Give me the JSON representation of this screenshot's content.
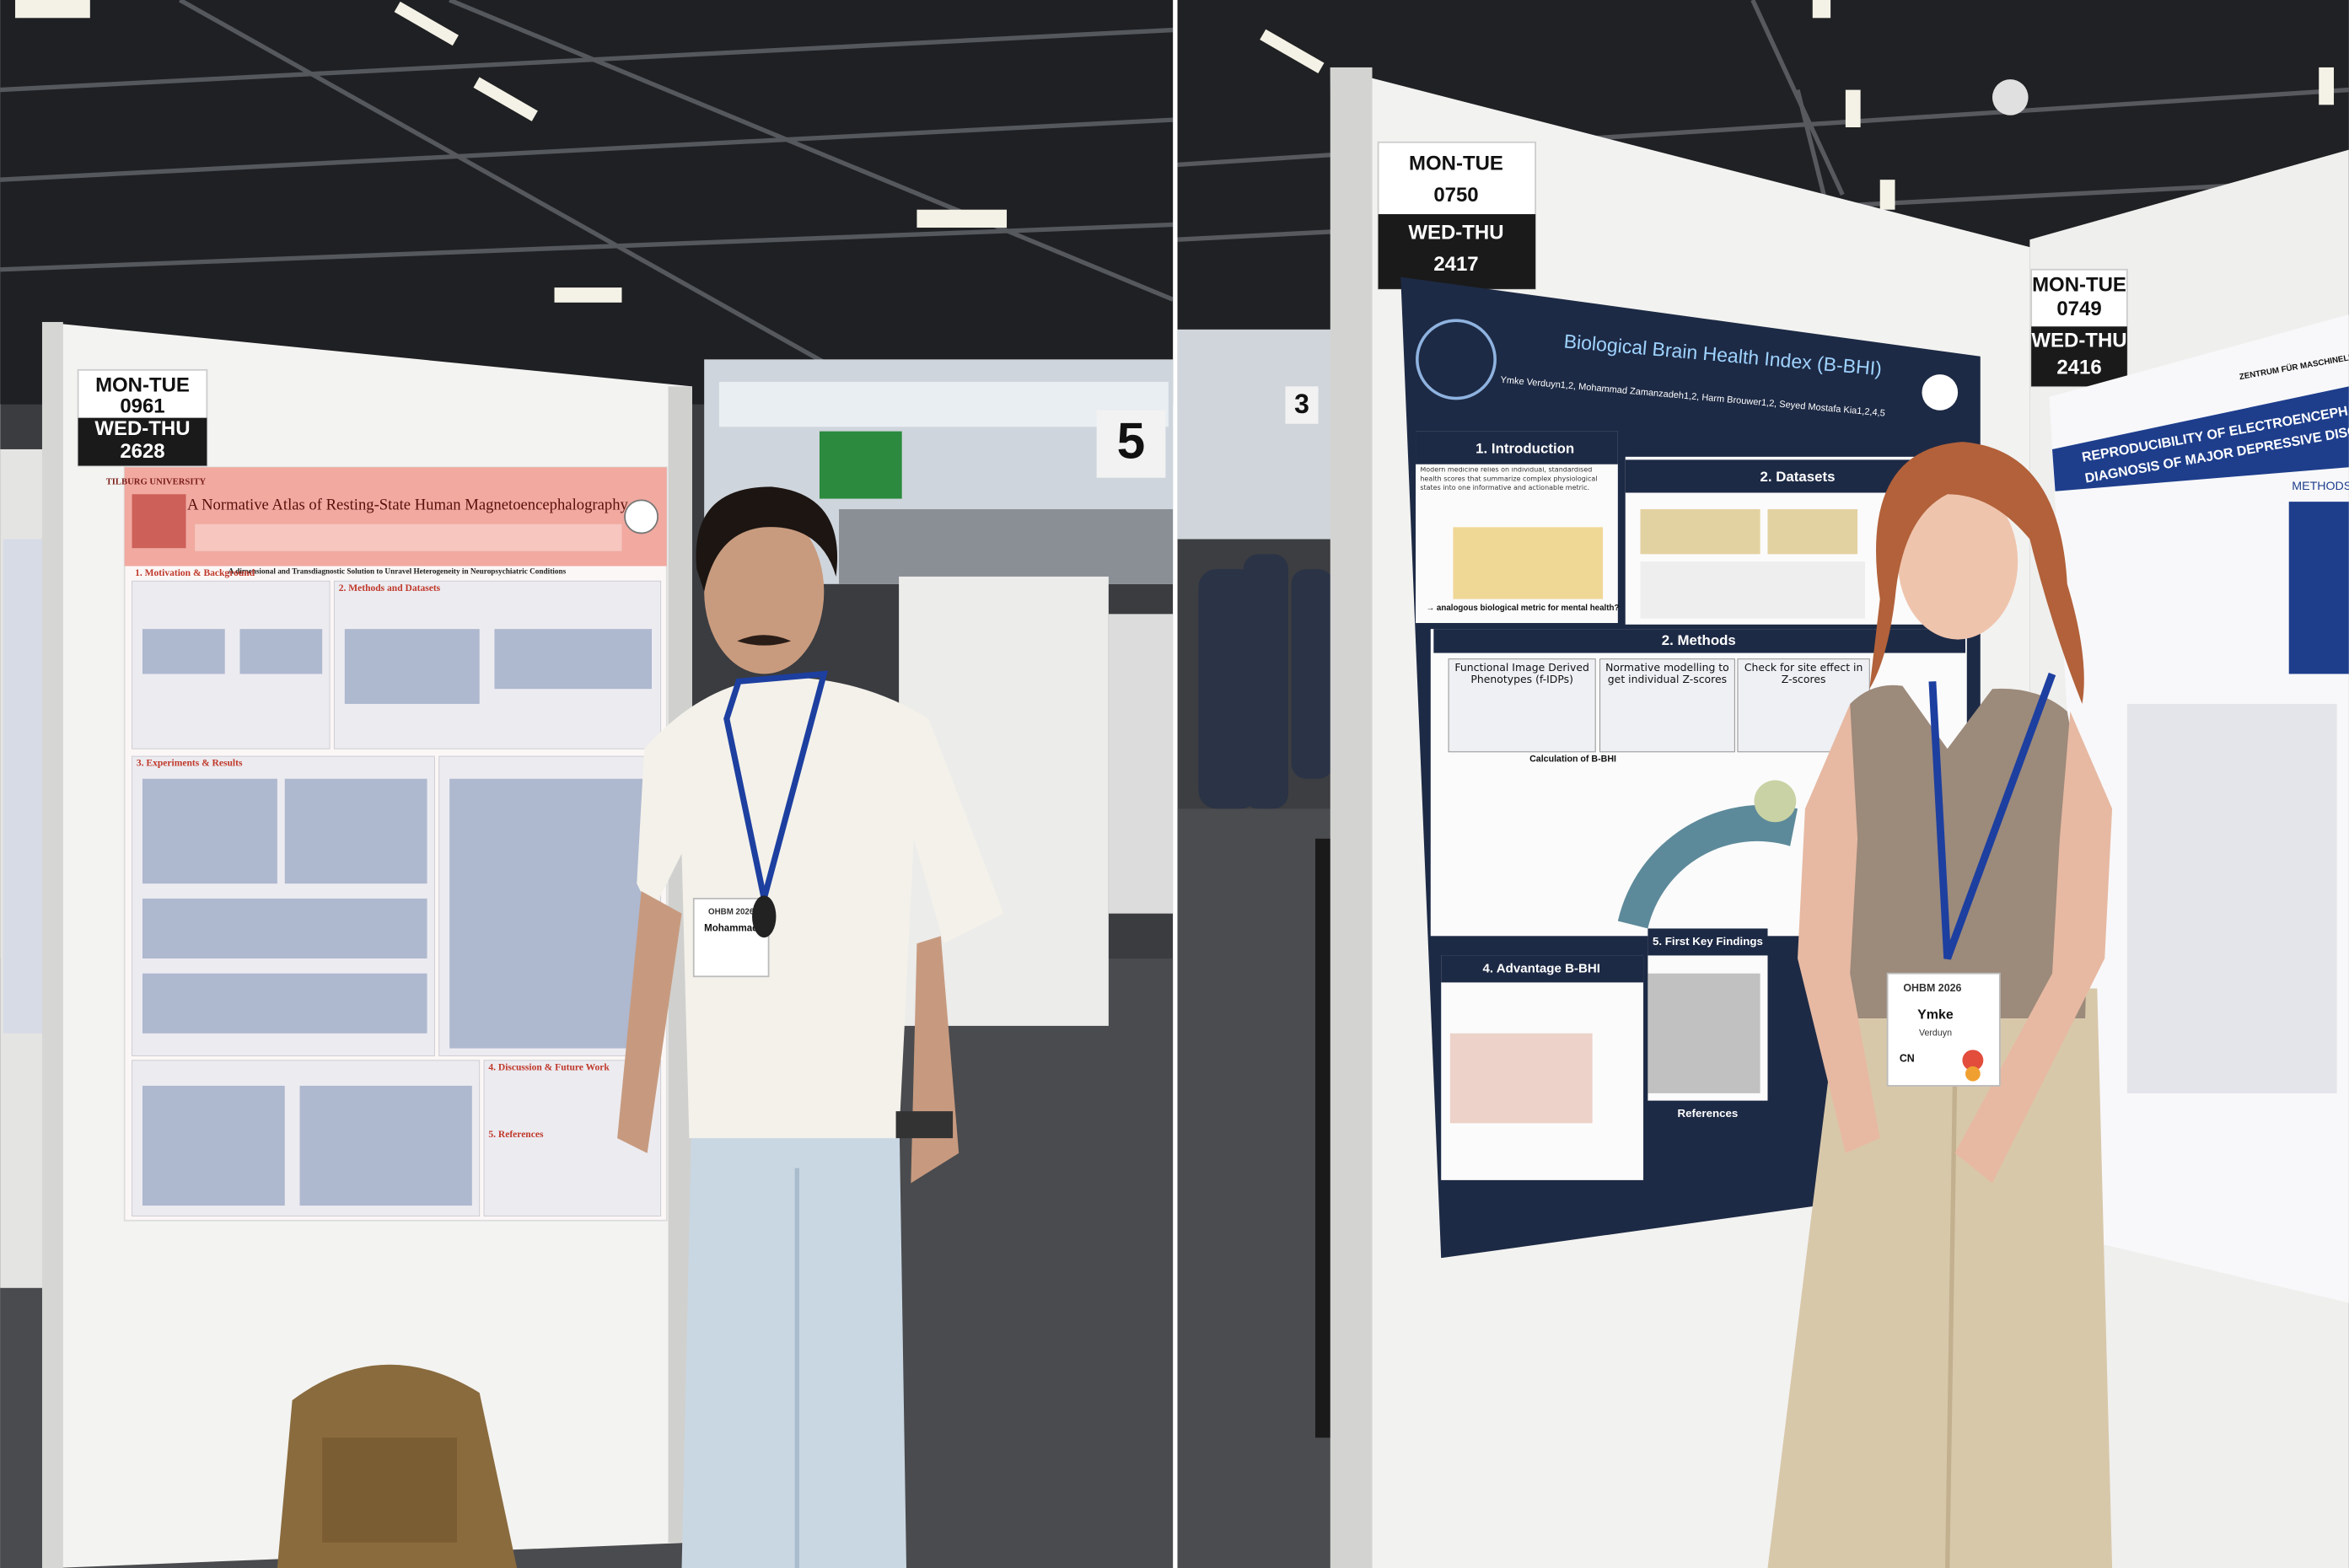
{
  "left_photo": {
    "hall_sign": "5",
    "board": {
      "days_1": "MON-TUE",
      "number_1": "0961",
      "days_2": "WED-THU",
      "number_2": "2628"
    },
    "poster": {
      "institution": "TILBURG UNIVERSITY",
      "title": "A Normative Atlas of Resting-State Human Magnetoencephalography",
      "subtitle": "A dimensional and Transdiagnostic Solution to Unravel Heterogeneity in Neuropsychiatric Conditions",
      "sections": [
        "1. Motivation & Background",
        "2. Methods and Datasets",
        "3. Experiments & Results",
        "4. Discussion & Future Work",
        "5. References"
      ]
    },
    "badge": {
      "event": "OHBM 2026",
      "name": "Mohammad"
    }
  },
  "right_photo": {
    "hall_sign": "3",
    "board": {
      "days_1": "MON-TUE",
      "number_1": "0750",
      "days_2": "WED-THU",
      "number_2": "2417"
    },
    "poster": {
      "title": "Biological Brain Health Index (B-BHI)",
      "authors": "Ymke Verduyn1,2, Mohammad Zamanzadeh1,2, Harm Brouwer1,2, Seyed Mostafa Kia1,2,4,5",
      "intro_text": "Modern medicine relies on individual, standardised health scores that summarize complex physiological states into one informative and actionable metric.",
      "intro_question": "→ analogous biological metric for mental health?",
      "sections": [
        "1. Introduction",
        "2. Datasets",
        "2. Methods",
        "4. Advantage B-BHI",
        "5. First Key Findings",
        "References"
      ],
      "method_steps": [
        "Functional Image Derived Phenotypes (f-IDPs)",
        "Normative modelling to get individual Z-scores",
        "Check for site effect in Z-scores"
      ],
      "calculation": "Calculation of B-BHI"
    },
    "badge": {
      "event": "OHBM 2026",
      "first_name": "Ymke",
      "last_name": "Verduyn",
      "tag": "CN"
    },
    "neighbor_board": {
      "days_1": "MON-TUE",
      "number_1": "0749",
      "days_2": "WED-THU",
      "number_2": "2416"
    },
    "neighbor_poster": {
      "institute": "ZENTRUM FÜR MASCHINELLES LERNEN",
      "title_line_1": "REPRODUCIBILITY OF ELECTROENCEPHALOGR",
      "title_line_2": "DIAGNOSIS OF MAJOR DEPRESSIVE DISORDER",
      "section": "METHODS"
    }
  }
}
